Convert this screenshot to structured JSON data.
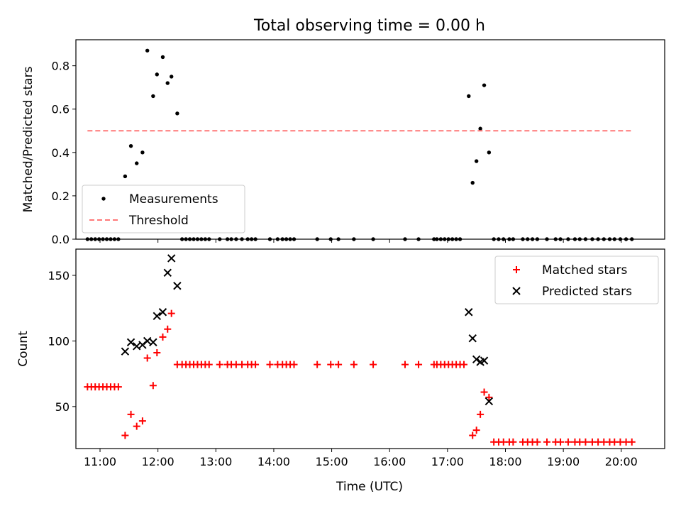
{
  "title": "Total observing time = 0.00 h",
  "x_label": "Time (UTC)",
  "x_ticks": [
    "11:00",
    "12:00",
    "13:00",
    "14:00",
    "15:00",
    "16:00",
    "17:00",
    "18:00",
    "19:00",
    "20:00"
  ],
  "chart_data": [
    {
      "type": "scatter",
      "panel": "top",
      "ylabel": "Matched/Predicted stars",
      "xlim": [
        "10:35",
        "20:45"
      ],
      "ylim": [
        0,
        0.92
      ],
      "yticks": [
        0.0,
        0.2,
        0.4,
        0.6,
        0.8
      ],
      "legend_position": "lower-left",
      "grid": false,
      "series": [
        {
          "name": "Measurements",
          "kind": "points",
          "color": "#000000",
          "points": [
            [
              "10:47",
              0
            ],
            [
              "10:51",
              0
            ],
            [
              "10:55",
              0
            ],
            [
              "10:59",
              0
            ],
            [
              "11:03",
              0
            ],
            [
              "11:07",
              0
            ],
            [
              "11:11",
              0
            ],
            [
              "11:15",
              0
            ],
            [
              "11:19",
              0
            ],
            [
              "11:26",
              0.29
            ],
            [
              "11:32",
              0.43
            ],
            [
              "11:38",
              0.35
            ],
            [
              "11:44",
              0.4
            ],
            [
              "11:49",
              0.87
            ],
            [
              "11:55",
              0.66
            ],
            [
              "11:59",
              0.76
            ],
            [
              "12:05",
              0.84
            ],
            [
              "12:10",
              0.72
            ],
            [
              "12:14",
              0.75
            ],
            [
              "12:20",
              0.58
            ],
            [
              "12:25",
              0
            ],
            [
              "12:29",
              0
            ],
            [
              "12:33",
              0
            ],
            [
              "12:37",
              0
            ],
            [
              "12:41",
              0
            ],
            [
              "12:45",
              0
            ],
            [
              "12:49",
              0
            ],
            [
              "12:53",
              0
            ],
            [
              "13:04",
              0
            ],
            [
              "13:12",
              0
            ],
            [
              "13:16",
              0
            ],
            [
              "13:21",
              0
            ],
            [
              "13:27",
              0
            ],
            [
              "13:33",
              0
            ],
            [
              "13:37",
              0
            ],
            [
              "13:41",
              0
            ],
            [
              "13:56",
              0
            ],
            [
              "14:04",
              0
            ],
            [
              "14:09",
              0
            ],
            [
              "14:13",
              0
            ],
            [
              "14:17",
              0
            ],
            [
              "14:21",
              0
            ],
            [
              "14:45",
              0
            ],
            [
              "14:59",
              0
            ],
            [
              "15:07",
              0
            ],
            [
              "15:23",
              0
            ],
            [
              "15:43",
              0
            ],
            [
              "16:16",
              0
            ],
            [
              "16:30",
              0
            ],
            [
              "16:46",
              0
            ],
            [
              "16:49",
              0
            ],
            [
              "16:53",
              0
            ],
            [
              "16:57",
              0
            ],
            [
              "17:01",
              0
            ],
            [
              "17:05",
              0
            ],
            [
              "17:09",
              0
            ],
            [
              "17:13",
              0
            ],
            [
              "17:22",
              0.66
            ],
            [
              "17:26",
              0.26
            ],
            [
              "17:30",
              0.36
            ],
            [
              "17:34",
              0.51
            ],
            [
              "17:38",
              0.71
            ],
            [
              "17:43",
              0.4
            ],
            [
              "17:48",
              0
            ],
            [
              "17:53",
              0
            ],
            [
              "17:58",
              0
            ],
            [
              "18:04",
              0
            ],
            [
              "18:08",
              0
            ],
            [
              "18:18",
              0
            ],
            [
              "18:23",
              0
            ],
            [
              "18:28",
              0
            ],
            [
              "18:33",
              0
            ],
            [
              "18:43",
              0
            ],
            [
              "18:52",
              0
            ],
            [
              "18:57",
              0
            ],
            [
              "19:05",
              0
            ],
            [
              "19:12",
              0
            ],
            [
              "19:17",
              0
            ],
            [
              "19:23",
              0
            ],
            [
              "19:30",
              0
            ],
            [
              "19:36",
              0
            ],
            [
              "19:42",
              0
            ],
            [
              "19:48",
              0
            ],
            [
              "19:53",
              0
            ],
            [
              "19:59",
              0
            ],
            [
              "20:05",
              0
            ],
            [
              "20:11",
              0
            ]
          ]
        },
        {
          "name": "Threshold",
          "kind": "dashed-line",
          "color": "#ff7878",
          "points": [
            [
              "10:47",
              0.5
            ],
            [
              "20:11",
              0.5
            ]
          ]
        }
      ]
    },
    {
      "type": "scatter",
      "panel": "bottom",
      "ylabel": "Count",
      "xlim": [
        "10:35",
        "20:45"
      ],
      "ylim": [
        18,
        170
      ],
      "yticks": [
        50,
        100,
        150
      ],
      "legend_position": "upper-right",
      "grid": false,
      "series": [
        {
          "name": "Matched stars",
          "marker": "plus",
          "color": "#ff0000",
          "points": [
            [
              "10:47",
              65
            ],
            [
              "10:51",
              65
            ],
            [
              "10:55",
              65
            ],
            [
              "10:59",
              65
            ],
            [
              "11:03",
              65
            ],
            [
              "11:07",
              65
            ],
            [
              "11:11",
              65
            ],
            [
              "11:15",
              65
            ],
            [
              "11:19",
              65
            ],
            [
              "11:26",
              28
            ],
            [
              "11:32",
              44
            ],
            [
              "11:38",
              35
            ],
            [
              "11:44",
              39
            ],
            [
              "11:49",
              87
            ],
            [
              "11:55",
              66
            ],
            [
              "11:59",
              91
            ],
            [
              "12:05",
              103
            ],
            [
              "12:10",
              109
            ],
            [
              "12:14",
              121
            ],
            [
              "12:20",
              82
            ],
            [
              "12:25",
              82
            ],
            [
              "12:29",
              82
            ],
            [
              "12:33",
              82
            ],
            [
              "12:37",
              82
            ],
            [
              "12:41",
              82
            ],
            [
              "12:45",
              82
            ],
            [
              "12:49",
              82
            ],
            [
              "12:53",
              82
            ],
            [
              "13:04",
              82
            ],
            [
              "13:12",
              82
            ],
            [
              "13:16",
              82
            ],
            [
              "13:21",
              82
            ],
            [
              "13:27",
              82
            ],
            [
              "13:33",
              82
            ],
            [
              "13:37",
              82
            ],
            [
              "13:41",
              82
            ],
            [
              "13:56",
              82
            ],
            [
              "14:04",
              82
            ],
            [
              "14:09",
              82
            ],
            [
              "14:13",
              82
            ],
            [
              "14:17",
              82
            ],
            [
              "14:21",
              82
            ],
            [
              "14:45",
              82
            ],
            [
              "14:59",
              82
            ],
            [
              "15:07",
              82
            ],
            [
              "15:23",
              82
            ],
            [
              "15:43",
              82
            ],
            [
              "16:16",
              82
            ],
            [
              "16:30",
              82
            ],
            [
              "16:46",
              82
            ],
            [
              "16:49",
              82
            ],
            [
              "16:53",
              82
            ],
            [
              "16:57",
              82
            ],
            [
              "17:01",
              82
            ],
            [
              "17:05",
              82
            ],
            [
              "17:09",
              82
            ],
            [
              "17:13",
              82
            ],
            [
              "17:17",
              82
            ],
            [
              "17:26",
              28
            ],
            [
              "17:30",
              32
            ],
            [
              "17:34",
              44
            ],
            [
              "17:38",
              61
            ],
            [
              "17:43",
              57
            ],
            [
              "17:48",
              23
            ],
            [
              "17:53",
              23
            ],
            [
              "17:58",
              23
            ],
            [
              "18:04",
              23
            ],
            [
              "18:08",
              23
            ],
            [
              "18:18",
              23
            ],
            [
              "18:23",
              23
            ],
            [
              "18:28",
              23
            ],
            [
              "18:33",
              23
            ],
            [
              "18:43",
              23
            ],
            [
              "18:52",
              23
            ],
            [
              "18:57",
              23
            ],
            [
              "19:05",
              23
            ],
            [
              "19:12",
              23
            ],
            [
              "19:17",
              23
            ],
            [
              "19:23",
              23
            ],
            [
              "19:30",
              23
            ],
            [
              "19:36",
              23
            ],
            [
              "19:42",
              23
            ],
            [
              "19:48",
              23
            ],
            [
              "19:53",
              23
            ],
            [
              "19:59",
              23
            ],
            [
              "20:05",
              23
            ],
            [
              "20:11",
              23
            ]
          ]
        },
        {
          "name": "Predicted stars",
          "marker": "x",
          "color": "#000000",
          "points": [
            [
              "11:26",
              92
            ],
            [
              "11:32",
              99
            ],
            [
              "11:38",
              96
            ],
            [
              "11:44",
              97
            ],
            [
              "11:49",
              100
            ],
            [
              "11:55",
              99
            ],
            [
              "11:59",
              119
            ],
            [
              "12:05",
              122
            ],
            [
              "12:10",
              152
            ],
            [
              "12:14",
              163
            ],
            [
              "12:20",
              142
            ],
            [
              "17:22",
              122
            ],
            [
              "17:26",
              102
            ],
            [
              "17:30",
              86
            ],
            [
              "17:34",
              84
            ],
            [
              "17:38",
              85
            ],
            [
              "17:43",
              54
            ]
          ]
        }
      ]
    }
  ]
}
